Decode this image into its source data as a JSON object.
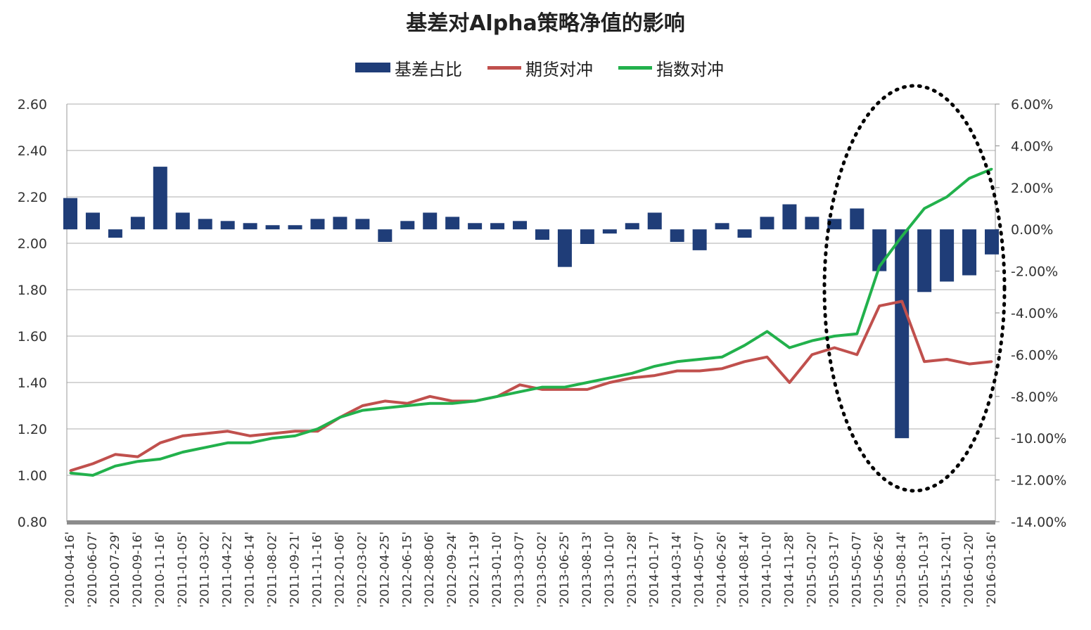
{
  "chart_data": {
    "type": "line",
    "title": "基差对Alpha策略净值的影响",
    "legend": [
      {
        "name": "基差占比",
        "kind": "bar",
        "color": "#1f3d78"
      },
      {
        "name": "期货对冲",
        "kind": "line",
        "color": "#c0504d"
      },
      {
        "name": "指数对冲",
        "kind": "line",
        "color": "#22b14c"
      }
    ],
    "legend_position": "top",
    "y_left": {
      "min": 0.8,
      "max": 2.6,
      "ticks": [
        "0.80",
        "1.00",
        "1.20",
        "1.40",
        "1.60",
        "1.80",
        "2.00",
        "2.20",
        "2.40",
        "2.60"
      ]
    },
    "y_right": {
      "min": -14,
      "max": 6,
      "ticks": [
        "6.00%",
        "4.00%",
        "2.00%",
        "0.00%",
        "-2.00%",
        "-4.00%",
        "-6.00%",
        "-8.00%",
        "-10.00%",
        "-12.00%",
        "-14.00%"
      ]
    },
    "grid": true,
    "x_labels": [
      "'2010-04-16'",
      "'2010-06-07'",
      "'2010-07-29'",
      "'2010-09-16'",
      "'2010-11-16'",
      "'2011-01-05'",
      "'2011-03-02'",
      "'2011-04-22'",
      "'2011-06-14'",
      "'2011-08-02'",
      "'2011-09-21'",
      "'2011-11-16'",
      "'2012-01-06'",
      "'2012-03-02'",
      "'2012-04-25'",
      "'2012-06-15'",
      "'2012-08-06'",
      "'2012-09-24'",
      "'2012-11-19'",
      "'2013-01-10'",
      "'2013-03-07'",
      "'2013-05-02'",
      "'2013-06-25'",
      "'2013-08-13'",
      "'2013-10-10'",
      "'2013-11-28'",
      "'2014-01-17'",
      "'2014-03-14'",
      "'2014-05-07'",
      "'2014-06-26'",
      "'2014-08-14'",
      "'2014-10-10'",
      "'2014-11-28'",
      "'2015-01-20'",
      "'2015-03-17'",
      "'2015-05-07'",
      "'2015-06-26'",
      "'2015-08-14'",
      "'2015-10-13'",
      "'2015-12-01'",
      "'2016-01-20'",
      "'2016-03-16'"
    ],
    "series": [
      {
        "name": "期货对冲",
        "axis": "left",
        "values": [
          1.02,
          1.05,
          1.09,
          1.08,
          1.14,
          1.17,
          1.18,
          1.19,
          1.17,
          1.18,
          1.19,
          1.19,
          1.25,
          1.3,
          1.32,
          1.31,
          1.34,
          1.32,
          1.32,
          1.34,
          1.39,
          1.37,
          1.37,
          1.37,
          1.4,
          1.42,
          1.43,
          1.45,
          1.45,
          1.46,
          1.49,
          1.51,
          1.4,
          1.52,
          1.55,
          1.52,
          1.73,
          1.75,
          1.49,
          1.5,
          1.48,
          1.49
        ]
      },
      {
        "name": "指数对冲",
        "axis": "left",
        "values": [
          1.01,
          1.0,
          1.04,
          1.06,
          1.07,
          1.1,
          1.12,
          1.14,
          1.14,
          1.16,
          1.17,
          1.2,
          1.25,
          1.28,
          1.29,
          1.3,
          1.31,
          1.31,
          1.32,
          1.34,
          1.36,
          1.38,
          1.38,
          1.4,
          1.42,
          1.44,
          1.47,
          1.49,
          1.5,
          1.51,
          1.56,
          1.62,
          1.55,
          1.58,
          1.6,
          1.61,
          1.9,
          2.03,
          2.15,
          2.2,
          2.28,
          2.32
        ]
      },
      {
        "name": "基差占比",
        "axis": "right",
        "type": "bar",
        "values": [
          1.5,
          0.8,
          -0.4,
          0.6,
          3.0,
          0.8,
          0.5,
          0.4,
          0.3,
          0.2,
          0.2,
          0.5,
          0.6,
          0.5,
          -0.6,
          0.4,
          0.8,
          0.6,
          0.3,
          0.3,
          0.4,
          -0.5,
          -1.8,
          -0.7,
          -0.2,
          0.3,
          0.8,
          -0.6,
          -1.0,
          0.3,
          -0.4,
          0.6,
          1.2,
          0.6,
          0.5,
          1.0,
          -2.0,
          -10.0,
          -3.0,
          -2.5,
          -2.2,
          -1.2
        ]
      }
    ]
  }
}
